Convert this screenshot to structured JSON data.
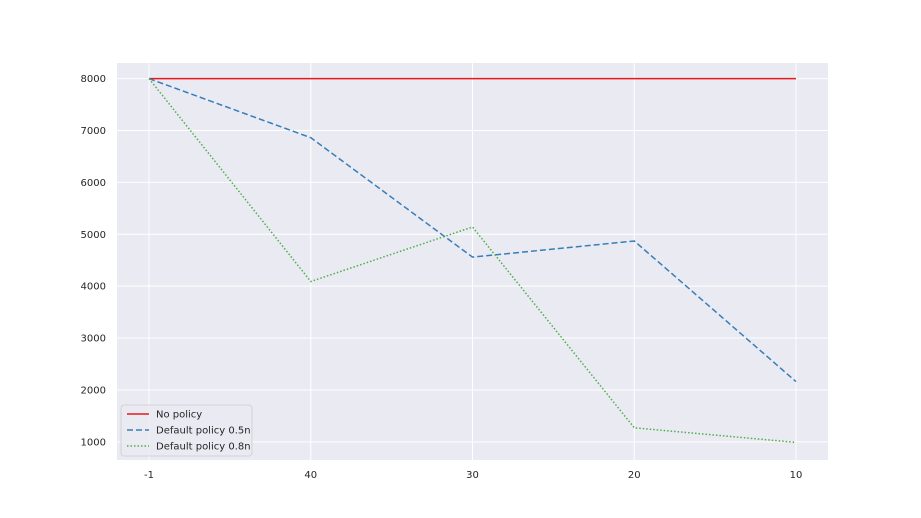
{
  "chart_data": {
    "type": "line",
    "title": "",
    "xlabel": "",
    "ylabel": "",
    "categories": [
      "-1",
      "40",
      "30",
      "20",
      "10"
    ],
    "yticks": [
      1000,
      2000,
      3000,
      4000,
      5000,
      6000,
      7000,
      8000
    ],
    "ylim": [
      650,
      8300
    ],
    "grid": true,
    "legend_position": "lower-left",
    "background": "#eaeaf2",
    "series": [
      {
        "name": "No policy",
        "values": [
          8000,
          8000,
          8000,
          8000,
          8000
        ],
        "color": "#e41a1c",
        "dash": "solid"
      },
      {
        "name": "Default policy 0.5n",
        "values": [
          8000,
          6860,
          4560,
          4870,
          2160
        ],
        "color": "#377eb8",
        "dash": "dashed"
      },
      {
        "name": "Default policy 0.8n",
        "values": [
          8000,
          4090,
          5140,
          1270,
          990
        ],
        "color": "#4daf4a",
        "dash": "dotted"
      }
    ]
  }
}
